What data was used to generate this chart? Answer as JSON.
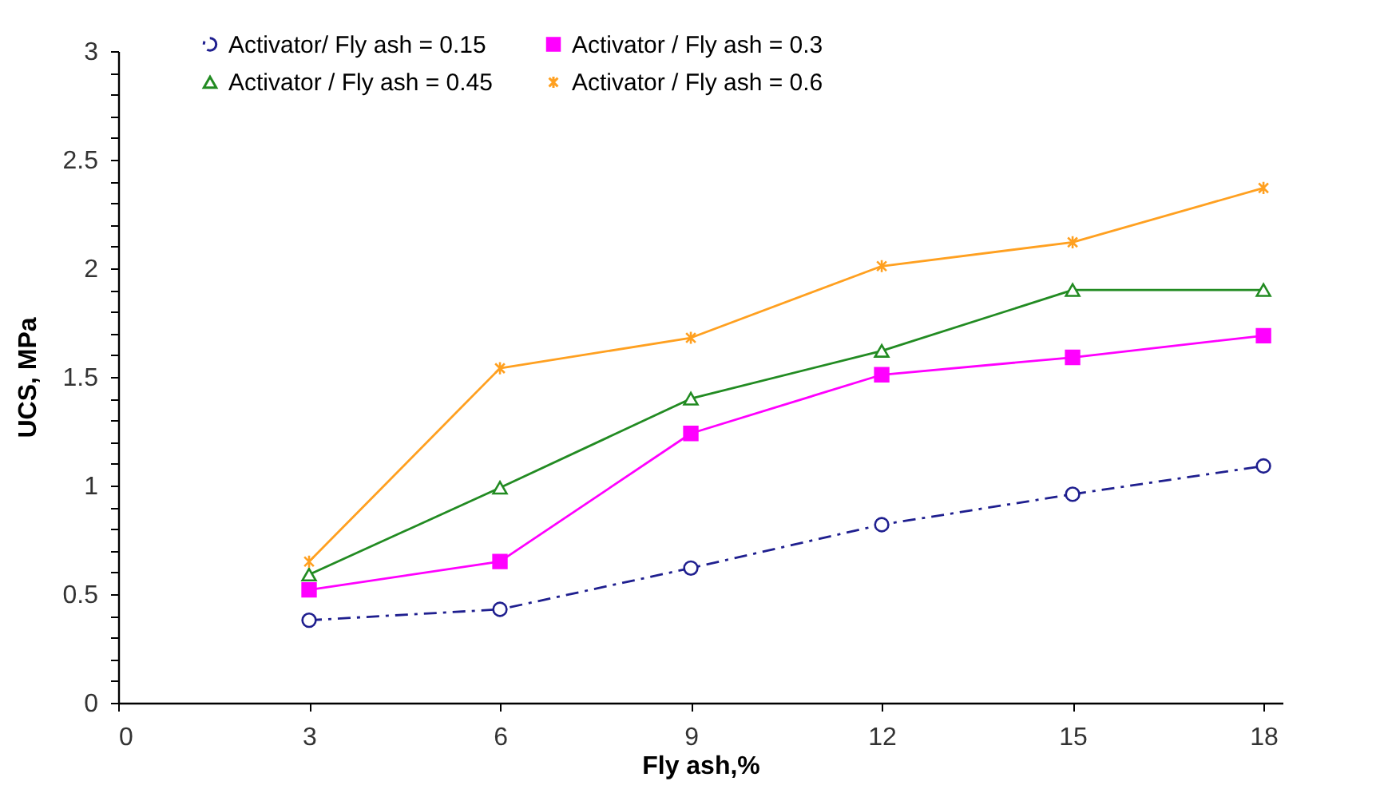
{
  "chart_data": {
    "type": "line",
    "xlabel": "Fly ash,%",
    "ylabel": "UCS, MPa",
    "x": [
      3,
      6,
      9,
      12,
      15,
      18
    ],
    "xlim": [
      0,
      18.3
    ],
    "xticks": [
      0,
      3,
      6,
      9,
      12,
      15,
      18
    ],
    "ylim": [
      0,
      3
    ],
    "yticks": [
      0,
      {
        "value": 0.1,
        "label": null
      },
      {
        "value": 0.2,
        "label": null
      },
      {
        "value": 0.3,
        "label": null
      },
      {
        "value": 0.4,
        "label": null
      },
      0.5,
      {
        "value": 0.6,
        "label": null
      },
      {
        "value": 0.7,
        "label": null
      },
      {
        "value": 0.8,
        "label": null
      },
      {
        "value": 0.9,
        "label": null
      },
      1,
      {
        "value": 1.1,
        "label": null
      },
      {
        "value": 1.2,
        "label": null
      },
      {
        "value": 1.3,
        "label": null
      },
      {
        "value": 1.4,
        "label": null
      },
      1.5,
      {
        "value": 1.6,
        "label": null
      },
      {
        "value": 1.7,
        "label": null
      },
      {
        "value": 1.8,
        "label": null
      },
      {
        "value": 1.9,
        "label": null
      },
      2,
      {
        "value": 2.1,
        "label": null
      },
      {
        "value": 2.2,
        "label": null
      },
      {
        "value": 2.3,
        "label": null
      },
      {
        "value": 2.4,
        "label": null
      },
      2.5,
      {
        "value": 2.6,
        "label": null
      },
      {
        "value": 2.7,
        "label": null
      },
      {
        "value": 2.8,
        "label": null
      },
      {
        "value": 2.9,
        "label": null
      },
      3
    ],
    "grid": false,
    "legend": "top",
    "series": [
      {
        "name": "Activator/ Fly ash = 0.15",
        "color": "#1f1f8f",
        "marker": "circle",
        "line_style": "dashed",
        "values": [
          0.38,
          0.43,
          0.62,
          0.82,
          0.96,
          1.09
        ]
      },
      {
        "name": "Activator / Fly ash = 0.3",
        "color": "#ff00ff",
        "marker": "square",
        "line_style": "solid",
        "values": [
          0.52,
          0.65,
          1.24,
          1.51,
          1.59,
          1.69
        ]
      },
      {
        "name": "Activator / Fly ash = 0.45",
        "color": "#228b22",
        "marker": "triangle",
        "line_style": "solid",
        "values": [
          0.59,
          0.99,
          1.4,
          1.62,
          1.9,
          1.9
        ]
      },
      {
        "name": "Activator / Fly ash = 0.6",
        "color": "#ffa020",
        "marker": "cross",
        "line_style": "solid",
        "values": [
          0.65,
          1.54,
          1.68,
          2.01,
          2.12,
          2.37
        ]
      }
    ]
  }
}
